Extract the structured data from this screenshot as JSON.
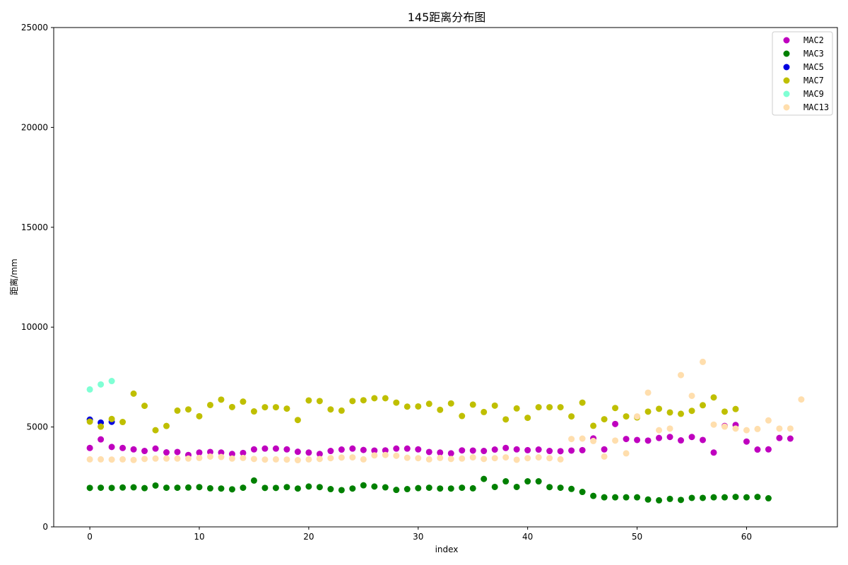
{
  "chart_data": {
    "type": "scatter",
    "title": "145距离分布图",
    "xlabel": "index",
    "ylabel": "距离/mm",
    "xlim": [
      -3.3,
      68.3
    ],
    "ylim": [
      0,
      25000
    ],
    "xticks": [
      0,
      10,
      20,
      30,
      40,
      50,
      60
    ],
    "yticks": [
      0,
      5000,
      10000,
      15000,
      20000,
      25000
    ],
    "grid": false,
    "legend_position": "top-right",
    "series": [
      {
        "name": "MAC2",
        "color": "#bf00bf",
        "x": [
          0,
          1,
          2,
          3,
          4,
          5,
          6,
          7,
          8,
          9,
          10,
          11,
          12,
          13,
          14,
          15,
          16,
          17,
          18,
          19,
          20,
          21,
          22,
          23,
          24,
          25,
          26,
          27,
          28,
          29,
          30,
          31,
          32,
          33,
          34,
          35,
          36,
          37,
          38,
          39,
          40,
          41,
          42,
          43,
          44,
          45,
          46,
          47,
          48,
          49,
          50,
          51,
          52,
          53,
          54,
          55,
          56,
          57,
          58,
          59,
          60,
          61,
          62,
          63,
          64
        ],
        "y": [
          3950,
          4380,
          4000,
          3950,
          3880,
          3800,
          3920,
          3730,
          3750,
          3600,
          3720,
          3750,
          3720,
          3650,
          3700,
          3880,
          3920,
          3920,
          3880,
          3760,
          3720,
          3650,
          3800,
          3870,
          3920,
          3850,
          3820,
          3830,
          3920,
          3920,
          3880,
          3750,
          3720,
          3680,
          3830,
          3820,
          3800,
          3870,
          3950,
          3880,
          3840,
          3870,
          3800,
          3790,
          3820,
          3840,
          4430,
          3880,
          5150,
          4400,
          4350,
          4320,
          4450,
          4500,
          4330,
          4500,
          4350,
          3720,
          5050,
          5100,
          4270,
          3870,
          3880,
          4450,
          4420
        ]
      },
      {
        "name": "MAC3",
        "color": "#008000",
        "x": [
          0,
          1,
          2,
          3,
          4,
          5,
          6,
          7,
          8,
          9,
          10,
          11,
          12,
          13,
          14,
          15,
          16,
          17,
          18,
          19,
          20,
          21,
          22,
          23,
          24,
          25,
          26,
          27,
          28,
          29,
          30,
          31,
          32,
          33,
          34,
          35,
          36,
          37,
          38,
          39,
          40,
          41,
          42,
          43,
          44,
          45,
          46,
          47,
          48,
          49,
          50,
          51,
          52,
          53,
          54,
          55,
          56,
          57,
          58,
          59,
          60,
          61,
          62
        ],
        "y": [
          1950,
          1960,
          1950,
          1970,
          1980,
          1940,
          2070,
          1960,
          1960,
          1970,
          1990,
          1930,
          1920,
          1880,
          1960,
          2320,
          1950,
          1950,
          1990,
          1920,
          2020,
          1990,
          1890,
          1840,
          1920,
          2080,
          2020,
          1980,
          1850,
          1890,
          1940,
          1960,
          1920,
          1920,
          1960,
          1930,
          2400,
          2000,
          2280,
          2000,
          2280,
          2280,
          1990,
          1960,
          1900,
          1750,
          1550,
          1480,
          1480,
          1480,
          1480,
          1370,
          1330,
          1400,
          1350,
          1450,
          1450,
          1480,
          1480,
          1500,
          1480,
          1500,
          1430
        ]
      },
      {
        "name": "MAC5",
        "color": "#0000e0",
        "x": [
          0,
          1,
          2
        ],
        "y": [
          5370,
          5220,
          5260
        ]
      },
      {
        "name": "MAC7",
        "color": "#bfbf00",
        "x": [
          0,
          1,
          2,
          3,
          4,
          5,
          6,
          7,
          8,
          9,
          10,
          11,
          12,
          13,
          14,
          15,
          16,
          17,
          18,
          19,
          20,
          21,
          22,
          23,
          24,
          25,
          26,
          27,
          28,
          29,
          30,
          31,
          32,
          33,
          34,
          35,
          36,
          37,
          38,
          39,
          40,
          41,
          42,
          43,
          44,
          45,
          46,
          47,
          48,
          49,
          50,
          51,
          52,
          53,
          54,
          55,
          56,
          57,
          58,
          59
        ],
        "y": [
          5270,
          5020,
          5400,
          5250,
          6670,
          6060,
          4840,
          5050,
          5820,
          5880,
          5540,
          6100,
          6370,
          6000,
          6270,
          5780,
          5990,
          5990,
          5920,
          5350,
          6330,
          6300,
          5880,
          5820,
          6300,
          6340,
          6440,
          6440,
          6220,
          6020,
          6030,
          6160,
          5860,
          6180,
          5550,
          6120,
          5750,
          6070,
          5380,
          5930,
          5460,
          5990,
          5990,
          5990,
          5530,
          6220,
          5060,
          5390,
          5950,
          5530,
          5480,
          5770,
          5910,
          5730,
          5660,
          5810,
          6090,
          6480,
          5770,
          5900
        ]
      },
      {
        "name": "MAC9",
        "color": "#7fffd4",
        "x": [
          0,
          1,
          2
        ],
        "y": [
          6880,
          7130,
          7300
        ]
      },
      {
        "name": "MAC13",
        "color": "#ffdead",
        "x": [
          0,
          1,
          2,
          3,
          4,
          5,
          6,
          7,
          8,
          9,
          10,
          11,
          12,
          13,
          14,
          15,
          16,
          17,
          18,
          19,
          20,
          21,
          22,
          23,
          24,
          25,
          26,
          27,
          28,
          29,
          30,
          31,
          32,
          33,
          34,
          35,
          36,
          37,
          38,
          39,
          40,
          41,
          42,
          43,
          44,
          45,
          46,
          47,
          48,
          49,
          50,
          51,
          52,
          53,
          54,
          55,
          56,
          57,
          58,
          59,
          60,
          61,
          62,
          63,
          64,
          65
        ],
        "y": [
          3380,
          3380,
          3370,
          3380,
          3350,
          3400,
          3420,
          3420,
          3420,
          3420,
          3450,
          3520,
          3500,
          3420,
          3450,
          3400,
          3370,
          3380,
          3370,
          3340,
          3380,
          3400,
          3440,
          3470,
          3480,
          3380,
          3580,
          3600,
          3560,
          3460,
          3440,
          3380,
          3450,
          3400,
          3420,
          3480,
          3400,
          3440,
          3480,
          3360,
          3440,
          3480,
          3440,
          3380,
          4400,
          4420,
          4300,
          3520,
          4320,
          3680,
          5530,
          6720,
          4840,
          4920,
          7600,
          6560,
          8260,
          5120,
          5020,
          4920,
          4840,
          4900,
          5330,
          4920,
          4920,
          6380
        ]
      }
    ]
  }
}
